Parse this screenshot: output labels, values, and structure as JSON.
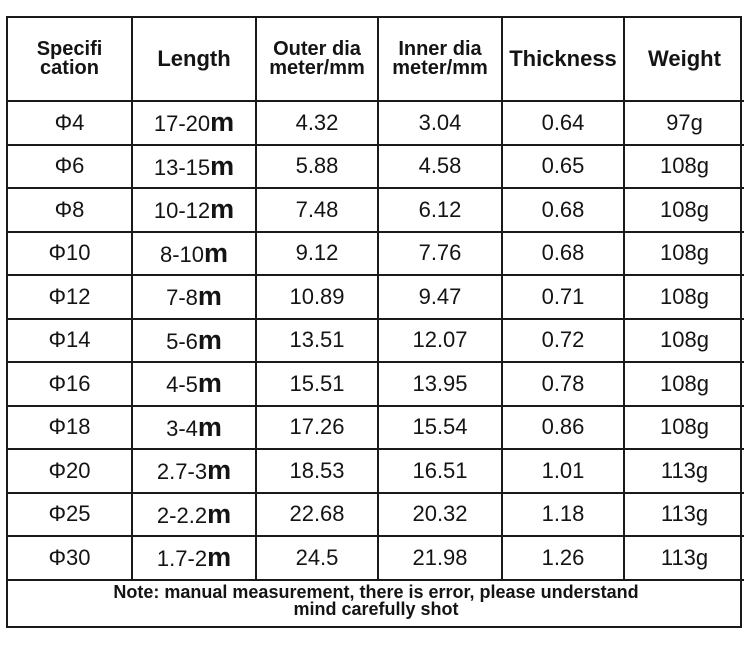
{
  "headers": {
    "spec_line1": "Specifi",
    "spec_line2": "cation",
    "length": "Length",
    "outer_line1": "Outer dia",
    "outer_line2": "meter/mm",
    "inner_line1": "Inner dia",
    "inner_line2": "meter/mm",
    "thickness": "Thickness",
    "weight": "Weight"
  },
  "rows": [
    {
      "spec": "Φ4",
      "length": "17-20",
      "unit": "m",
      "outer": "4.32",
      "inner": "3.04",
      "thickness": "0.64",
      "weight": "97g"
    },
    {
      "spec": "Φ6",
      "length": "13-15",
      "unit": "m",
      "outer": "5.88",
      "inner": "4.58",
      "thickness": "0.65",
      "weight": "108g"
    },
    {
      "spec": "Φ8",
      "length": "10-12",
      "unit": "m",
      "outer": "7.48",
      "inner": "6.12",
      "thickness": "0.68",
      "weight": "108g"
    },
    {
      "spec": "Φ10",
      "length": "8-10",
      "unit": "m",
      "outer": "9.12",
      "inner": "7.76",
      "thickness": "0.68",
      "weight": "108g"
    },
    {
      "spec": "Φ12",
      "length": "7-8",
      "unit": "m",
      "outer": "10.89",
      "inner": "9.47",
      "thickness": "0.71",
      "weight": "108g"
    },
    {
      "spec": "Φ14",
      "length": "5-6",
      "unit": "m",
      "outer": "13.51",
      "inner": "12.07",
      "thickness": "0.72",
      "weight": "108g"
    },
    {
      "spec": "Φ16",
      "length": "4-5",
      "unit": "m",
      "outer": "15.51",
      "inner": "13.95",
      "thickness": "0.78",
      "weight": "108g"
    },
    {
      "spec": "Φ18",
      "length": "3-4",
      "unit": "m",
      "outer": "17.26",
      "inner": "15.54",
      "thickness": "0.86",
      "weight": "108g"
    },
    {
      "spec": "Φ20",
      "length": "2.7-3",
      "unit": "m",
      "outer": "18.53",
      "inner": "16.51",
      "thickness": "1.01",
      "weight": "113g"
    },
    {
      "spec": "Φ25",
      "length": "2-2.2",
      "unit": "m",
      "outer": "22.68",
      "inner": "20.32",
      "thickness": "1.18",
      "weight": "113g"
    },
    {
      "spec": "Φ30",
      "length": "1.7-2",
      "unit": "m",
      "outer": "24.5",
      "inner": "21.98",
      "thickness": "1.26",
      "weight": "113g"
    }
  ],
  "note": {
    "line1": "Note: manual measurement, there is error, please understand",
    "line2": "mind carefully shot"
  }
}
